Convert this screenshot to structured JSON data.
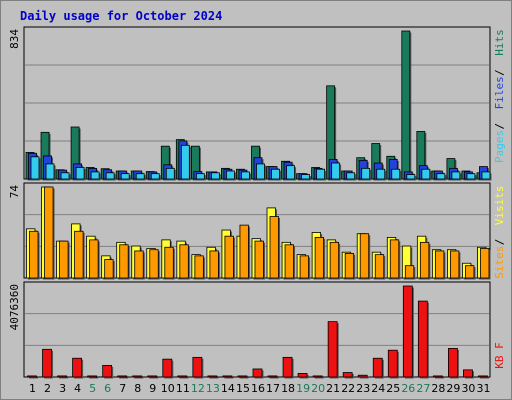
{
  "title": "Daily usage for October 2024",
  "colors": {
    "hits": "#1a7a5c",
    "files": "#2244dd",
    "pages": "#33ccee",
    "visits": "#ffff33",
    "sites": "#ff9900",
    "kbf": "#ee1111",
    "weekend": "#1a7a5c",
    "weekday": "#000000"
  },
  "chart_data": [
    {
      "type": "bar",
      "panel": "hits-files-pages",
      "ylabel_max": "834",
      "ylim": [
        0,
        834
      ],
      "legend": [
        "Pages",
        "Files",
        "Hits"
      ],
      "categories": [
        "1",
        "2",
        "3",
        "4",
        "5",
        "6",
        "7",
        "8",
        "9",
        "10",
        "11",
        "12",
        "13",
        "14",
        "15",
        "16",
        "17",
        "18",
        "19",
        "20",
        "21",
        "22",
        "23",
        "24",
        "25",
        "26",
        "27",
        "28",
        "29",
        "30",
        "31"
      ],
      "weekend_days": [
        5,
        6,
        12,
        13,
        19,
        20,
        26,
        27
      ],
      "series": [
        {
          "name": "Hits",
          "values": [
            150,
            263,
            52,
            293,
            65,
            58,
            45,
            45,
            42,
            185,
            222,
            185,
            40,
            60,
            55,
            185,
            70,
            100,
            30,
            65,
            525,
            45,
            120,
            200,
            128,
            834,
            268,
            45,
            115,
            45,
            35
          ]
        },
        {
          "name": "Files",
          "values": [
            145,
            130,
            50,
            85,
            60,
            52,
            45,
            45,
            40,
            80,
            215,
            42,
            40,
            55,
            50,
            120,
            70,
            95,
            30,
            60,
            110,
            45,
            105,
            90,
            110,
            40,
            75,
            45,
            60,
            40,
            70
          ]
        },
        {
          "name": "Pages",
          "values": [
            125,
            85,
            35,
            65,
            40,
            35,
            30,
            30,
            30,
            60,
            190,
            30,
            35,
            45,
            40,
            85,
            55,
            75,
            25,
            55,
            90,
            35,
            60,
            55,
            55,
            25,
            55,
            30,
            40,
            30,
            40
          ]
        }
      ]
    },
    {
      "type": "bar",
      "panel": "visits-sites",
      "ylabel_max": "74",
      "ylim": [
        0,
        74
      ],
      "legend": [
        "Sites",
        "Visits"
      ],
      "categories": [
        "1",
        "2",
        "3",
        "4",
        "5",
        "6",
        "7",
        "8",
        "9",
        "10",
        "11",
        "12",
        "13",
        "14",
        "15",
        "16",
        "17",
        "18",
        "19",
        "20",
        "21",
        "22",
        "23",
        "24",
        "25",
        "26",
        "27",
        "28",
        "29",
        "30",
        "31"
      ],
      "series": [
        {
          "name": "Visits",
          "values": [
            40,
            74,
            30,
            44,
            34,
            18,
            29,
            26,
            24,
            31,
            30,
            19,
            25,
            39,
            34,
            32,
            57,
            29,
            19,
            37,
            31,
            21,
            36,
            21,
            33,
            26,
            34,
            23,
            23,
            12,
            25
          ]
        },
        {
          "name": "Sites",
          "values": [
            38,
            74,
            30,
            38,
            31,
            15,
            27,
            22,
            23,
            25,
            27,
            18,
            22,
            34,
            43,
            30,
            50,
            27,
            18,
            33,
            29,
            20,
            36,
            19,
            31,
            10,
            29,
            22,
            22,
            10,
            24
          ]
        }
      ]
    },
    {
      "type": "bar",
      "panel": "kbf",
      "ylabel_max": "4076360",
      "ylim": [
        0,
        4076360
      ],
      "legend": [
        "KB F"
      ],
      "categories": [
        "1",
        "2",
        "3",
        "4",
        "5",
        "6",
        "7",
        "8",
        "9",
        "10",
        "11",
        "12",
        "13",
        "14",
        "15",
        "16",
        "17",
        "18",
        "19",
        "20",
        "21",
        "22",
        "23",
        "24",
        "25",
        "26",
        "27",
        "28",
        "29",
        "30",
        "31"
      ],
      "series": [
        {
          "name": "KB F",
          "values": [
            0,
            1240000,
            0,
            840000,
            0,
            520000,
            0,
            0,
            0,
            800000,
            0,
            880000,
            0,
            0,
            0,
            360000,
            0,
            880000,
            160000,
            0,
            2480000,
            200000,
            80000,
            840000,
            1200000,
            4076360,
            3400000,
            0,
            1280000,
            320000,
            0
          ]
        }
      ]
    }
  ]
}
